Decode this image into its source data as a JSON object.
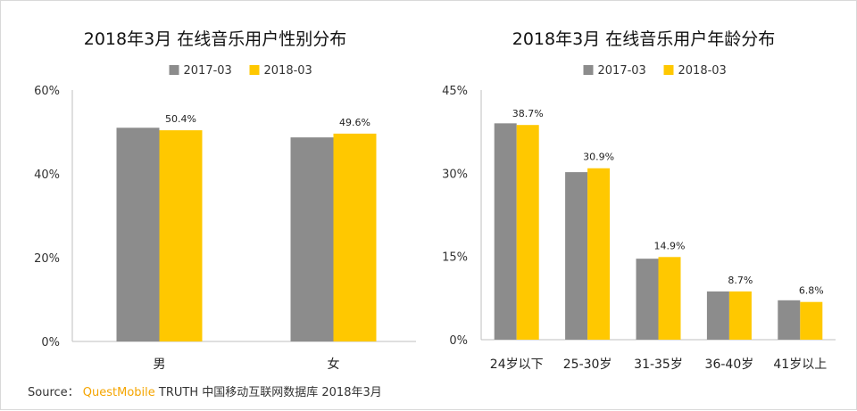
{
  "colors": {
    "series_2017": "#8c8c8c",
    "series_2018": "#ffc800",
    "axis": "#bfbfbf",
    "brand": "#f5a500"
  },
  "chart_data": [
    {
      "type": "bar",
      "title": "2018年3月 在线音乐用户性别分布",
      "categories": [
        "男",
        "女"
      ],
      "series": [
        {
          "name": "2017-03",
          "values": [
            51.0,
            48.7
          ]
        },
        {
          "name": "2018-03",
          "values": [
            50.4,
            49.6
          ]
        }
      ],
      "data_labels": [
        "",
        "",
        "50.4%",
        "49.6%"
      ],
      "yticks": [
        "0%",
        "20%",
        "40%",
        "60%"
      ],
      "ylim": [
        0,
        60
      ],
      "legend": "top-center"
    },
    {
      "type": "bar",
      "title": "2018年3月 在线音乐用户年龄分布",
      "categories": [
        "24岁以下",
        "25-30岁",
        "31-35岁",
        "36-40岁",
        "41岁以上"
      ],
      "series": [
        {
          "name": "2017-03",
          "values": [
            39.0,
            30.2,
            14.6,
            8.7,
            7.1
          ]
        },
        {
          "name": "2018-03",
          "values": [
            38.7,
            30.9,
            14.9,
            8.7,
            6.8
          ]
        }
      ],
      "data_labels": [
        "",
        "",
        "",
        "",
        "",
        "38.7%",
        "30.9%",
        "14.9%",
        "8.7%",
        "6.8%"
      ],
      "yticks": [
        "0%",
        "15%",
        "30%",
        "45%"
      ],
      "ylim": [
        0,
        45
      ],
      "legend": "top-center"
    }
  ],
  "source": {
    "prefix": "Source：",
    "brand": "QuestMobile",
    "rest": "TRUTH 中国移动互联网数据库 2018年3月"
  }
}
